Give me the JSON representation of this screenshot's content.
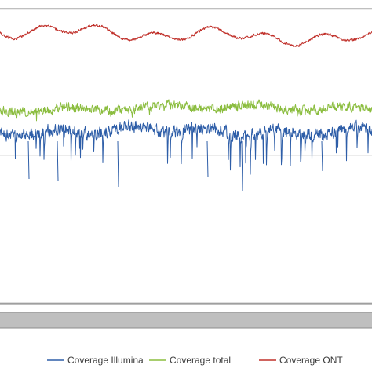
{
  "chart_data": {
    "type": "line",
    "title": "",
    "xlabel": "",
    "ylabel": "",
    "grid": true,
    "legend_position": "bottom",
    "series": [
      {
        "name": "Coverage Illumina",
        "color": "#2e5ea8"
      },
      {
        "name": "Coverage total",
        "color": "#8bbd3f"
      },
      {
        "name": "Coverage ONT",
        "color": "#c0302a"
      }
    ]
  }
}
